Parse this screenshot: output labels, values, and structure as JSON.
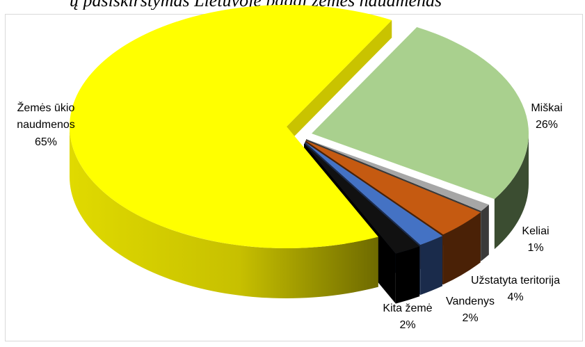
{
  "header_fragment": "ų pasiskirstymas Lietuvoje pagal žemės naudmenas",
  "chart_data": {
    "type": "pie",
    "style": "3d-exploded",
    "slices": [
      {
        "name": "Miškai",
        "value": 26,
        "label": "26%",
        "color": "#a9d08e",
        "side_color": "#3b4d31"
      },
      {
        "name": "Keliai",
        "value": 1,
        "label": "1%",
        "color": "#a6a6a6",
        "side_color": "#3a3a3a"
      },
      {
        "name": "Užstatyta teritorija",
        "value": 4,
        "label": "4%",
        "color": "#c55a11",
        "side_color": "#4a2106"
      },
      {
        "name": "Vandenys",
        "value": 2,
        "label": "2%",
        "color": "#4472c4",
        "side_color": "#1a2b4b"
      },
      {
        "name": "Kita žemė",
        "value": 2,
        "label": "2%",
        "color": "#111111",
        "side_color": "#000000"
      },
      {
        "name": "Žemės ūkio naudmenos",
        "value": 65,
        "label": "65%",
        "color": "#ffff00",
        "side_color": "#807b00"
      }
    ],
    "legend": "none",
    "data_labels": "outside"
  }
}
